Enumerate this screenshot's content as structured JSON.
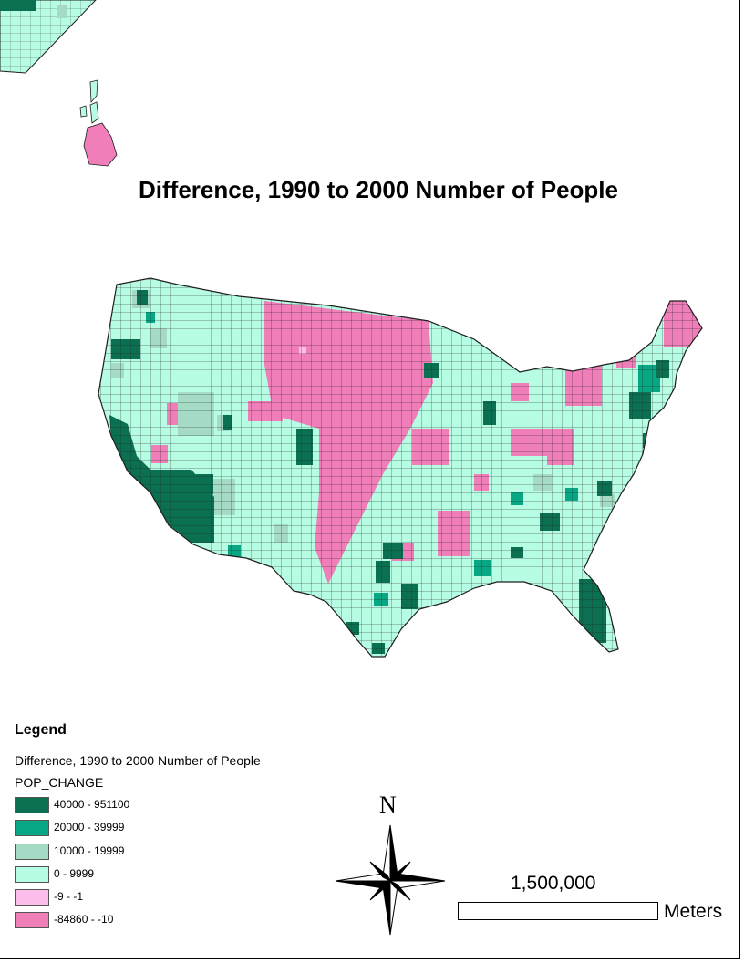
{
  "map": {
    "title": "Difference, 1990 to 2000 Number of People",
    "regions": [
      "Contiguous United States (counties)",
      "Alaska (partial)",
      "Hawaii"
    ]
  },
  "legend": {
    "heading": "Legend",
    "layer_name": "Difference, 1990 to 2000 Number of People",
    "field": "POP_CHANGE",
    "classes": [
      {
        "label": "40000 - 951100",
        "color": "#0b7052"
      },
      {
        "label": "20000 - 39999",
        "color": "#07a783"
      },
      {
        "label": "10000 - 19999",
        "color": "#a5dbc4"
      },
      {
        "label": "0 - 9999",
        "color": "#b7fde4"
      },
      {
        "label": "-9 - -1",
        "color": "#fdbdea"
      },
      {
        "label": "-84860 - -10",
        "color": "#f07eb9"
      }
    ]
  },
  "north_arrow": {
    "letter": "N"
  },
  "scale_bar": {
    "value": "1,500,000",
    "unit": "Meters"
  }
}
